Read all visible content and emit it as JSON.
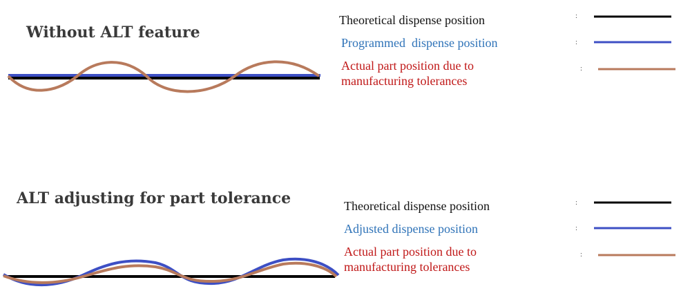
{
  "colors": {
    "theoretical": "#000000",
    "programmed": "#3d4fc4",
    "actual": "#b87a5c",
    "blue_text": "#2f73b8",
    "red_text": "#c01818",
    "black_text": "#111111",
    "title": "#3a3a3a"
  },
  "panels": [
    {
      "title": "Without ALT feature",
      "legend": [
        {
          "label": "Theoretical dispense position",
          "marker": ":",
          "series": "theoretical"
        },
        {
          "label": "Programmed  dispense position",
          "marker": ":",
          "series": "programmed"
        },
        {
          "label": "Actual part position due to\nmanufacturing tolerances",
          "marker": ":",
          "series": "actual"
        }
      ]
    },
    {
      "title": "ALT adjusting for part tolerance",
      "legend": [
        {
          "label": "Theoretical dispense position",
          "marker": ":",
          "series": "theoretical"
        },
        {
          "label": "Adjusted dispense position",
          "marker": ":",
          "series": "adjusted"
        },
        {
          "label": "Actual part position due to\nmanufacturing tolerances",
          "marker": ":",
          "series": "actual"
        }
      ]
    }
  ]
}
